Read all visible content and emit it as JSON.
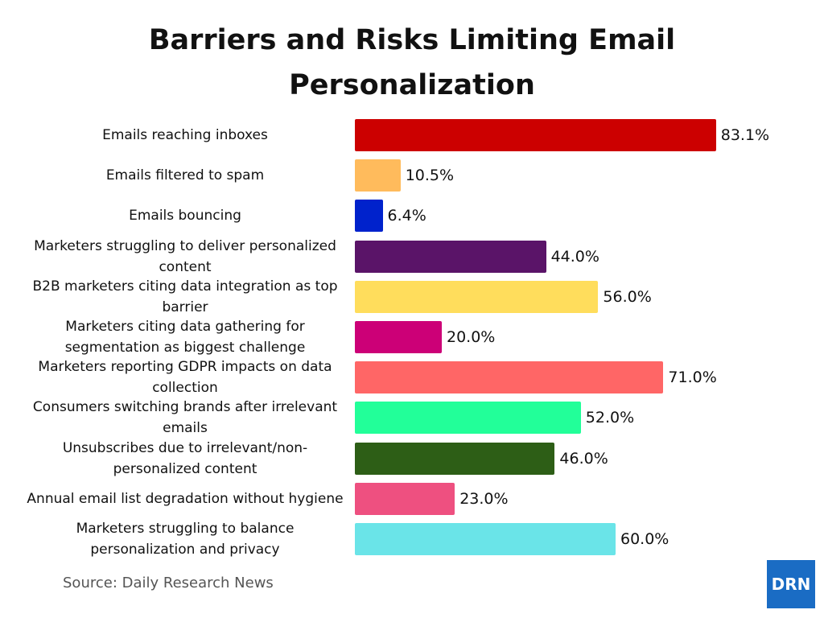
{
  "chart_data": {
    "type": "bar",
    "orientation": "horizontal",
    "title": "Barriers and Risks Limiting Email Personalization",
    "categories": [
      "Emails reaching inboxes",
      "Emails filtered to spam",
      "Emails bouncing",
      "Marketers struggling to deliver personalized content",
      "B2B marketers citing data integration as top barrier",
      "Marketers citing data gathering for segmentation as biggest challenge",
      "Marketers reporting GDPR impacts on data collection",
      "Consumers switching brands after irrelevant emails",
      "Unsubscribes due to irrelevant/non-personalized content",
      "Annual email list degradation without hygiene",
      "Marketers struggling to balance personalization and privacy"
    ],
    "values": [
      83.1,
      10.5,
      6.4,
      44.0,
      56.0,
      20.0,
      71.0,
      52.0,
      46.0,
      23.0,
      60.0
    ],
    "value_labels": [
      "83.1%",
      "10.5%",
      "6.4%",
      "44.0%",
      "56.0%",
      "20.0%",
      "71.0%",
      "52.0%",
      "46.0%",
      "23.0%",
      "60.0%"
    ],
    "colors": [
      "#cc0000",
      "#ffbb5c",
      "#0022cc",
      "#5a1468",
      "#ffdd5c",
      "#cc0077",
      "#ff6666",
      "#22ff99",
      "#2d5e16",
      "#ee5080",
      "#6ae4e8"
    ],
    "source": "Source: Daily Research News",
    "logo": "DRN"
  }
}
